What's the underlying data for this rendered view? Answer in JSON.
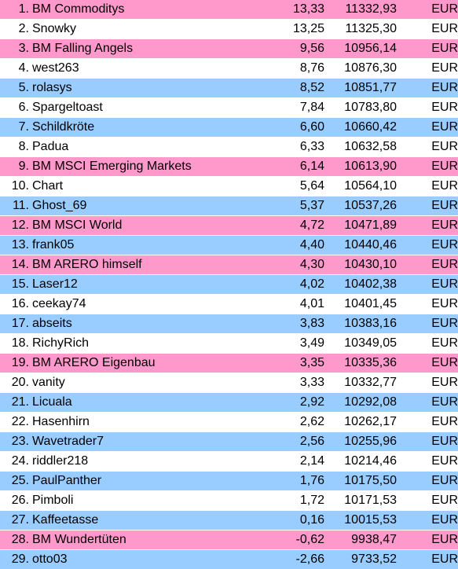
{
  "colors": {
    "pink": "#ff99cc",
    "blue": "#99ccff",
    "white": "#ffffff"
  },
  "rows": [
    {
      "rank": "1.",
      "name": "BM Commoditys",
      "pct": "13,33",
      "value": "11332,93",
      "currency": "EUR",
      "color": "pink"
    },
    {
      "rank": "2.",
      "name": "Snowky",
      "pct": "13,25",
      "value": "11325,30",
      "currency": "EUR",
      "color": "white"
    },
    {
      "rank": "3.",
      "name": "BM Falling Angels",
      "pct": "9,56",
      "value": "10956,14",
      "currency": "EUR",
      "color": "pink"
    },
    {
      "rank": "4.",
      "name": "west263",
      "pct": "8,76",
      "value": "10876,30",
      "currency": "EUR",
      "color": "white"
    },
    {
      "rank": "5.",
      "name": "rolasys",
      "pct": "8,52",
      "value": "10851,77",
      "currency": "EUR",
      "color": "blue"
    },
    {
      "rank": "6.",
      "name": "Spargeltoast",
      "pct": "7,84",
      "value": "10783,80",
      "currency": "EUR",
      "color": "white"
    },
    {
      "rank": "7.",
      "name": "Schildkröte",
      "pct": "6,60",
      "value": "10660,42",
      "currency": "EUR",
      "color": "blue"
    },
    {
      "rank": "8.",
      "name": "Padua",
      "pct": "6,33",
      "value": "10632,58",
      "currency": "EUR",
      "color": "white"
    },
    {
      "rank": "9.",
      "name": "BM MSCI Emerging Markets",
      "pct": "6,14",
      "value": "10613,90",
      "currency": "EUR",
      "color": "pink"
    },
    {
      "rank": "10.",
      "name": "Chart",
      "pct": "5,64",
      "value": "10564,10",
      "currency": "EUR",
      "color": "white"
    },
    {
      "rank": "11.",
      "name": "Ghost_69",
      "pct": "5,37",
      "value": "10537,26",
      "currency": "EUR",
      "color": "blue"
    },
    {
      "rank": "12.",
      "name": "BM MSCI World",
      "pct": "4,72",
      "value": "10471,89",
      "currency": "EUR",
      "color": "pink"
    },
    {
      "rank": "13.",
      "name": "frank05",
      "pct": "4,40",
      "value": "10440,46",
      "currency": "EUR",
      "color": "blue"
    },
    {
      "rank": "14.",
      "name": "BM ARERO himself",
      "pct": "4,30",
      "value": "10430,10",
      "currency": "EUR",
      "color": "pink"
    },
    {
      "rank": "15.",
      "name": "Laser12",
      "pct": "4,02",
      "value": "10402,38",
      "currency": "EUR",
      "color": "blue"
    },
    {
      "rank": "16.",
      "name": "ceekay74",
      "pct": "4,01",
      "value": "10401,45",
      "currency": "EUR",
      "color": "white"
    },
    {
      "rank": "17.",
      "name": "abseits",
      "pct": "3,83",
      "value": "10383,16",
      "currency": "EUR",
      "color": "blue"
    },
    {
      "rank": "18.",
      "name": "RichyRich",
      "pct": "3,49",
      "value": "10349,05",
      "currency": "EUR",
      "color": "white"
    },
    {
      "rank": "19.",
      "name": "BM ARERO Eigenbau",
      "pct": "3,35",
      "value": "10335,36",
      "currency": "EUR",
      "color": "pink"
    },
    {
      "rank": "20.",
      "name": "vanity",
      "pct": "3,33",
      "value": "10332,77",
      "currency": "EUR",
      "color": "white"
    },
    {
      "rank": "21.",
      "name": "Licuala",
      "pct": "2,92",
      "value": "10292,08",
      "currency": "EUR",
      "color": "blue"
    },
    {
      "rank": "22.",
      "name": "Hasenhirn",
      "pct": "2,62",
      "value": "10262,17",
      "currency": "EUR",
      "color": "white"
    },
    {
      "rank": "23.",
      "name": "Wavetrader7",
      "pct": "2,56",
      "value": "10255,96",
      "currency": "EUR",
      "color": "blue"
    },
    {
      "rank": "24.",
      "name": "riddler218",
      "pct": "2,14",
      "value": "10214,46",
      "currency": "EUR",
      "color": "white"
    },
    {
      "rank": "25.",
      "name": "PaulPanther",
      "pct": "1,76",
      "value": "10175,50",
      "currency": "EUR",
      "color": "blue"
    },
    {
      "rank": "26.",
      "name": "Pimboli",
      "pct": "1,72",
      "value": "10171,53",
      "currency": "EUR",
      "color": "white"
    },
    {
      "rank": "27.",
      "name": "Kaffeetasse",
      "pct": "0,16",
      "value": "10015,53",
      "currency": "EUR",
      "color": "blue"
    },
    {
      "rank": "28.",
      "name": "BM Wundertüten",
      "pct": "-0,62",
      "value": "9938,47",
      "currency": "EUR",
      "color": "pink"
    },
    {
      "rank": "29.",
      "name": "otto03",
      "pct": "-2,66",
      "value": "9733,52",
      "currency": "EUR",
      "color": "blue"
    }
  ]
}
